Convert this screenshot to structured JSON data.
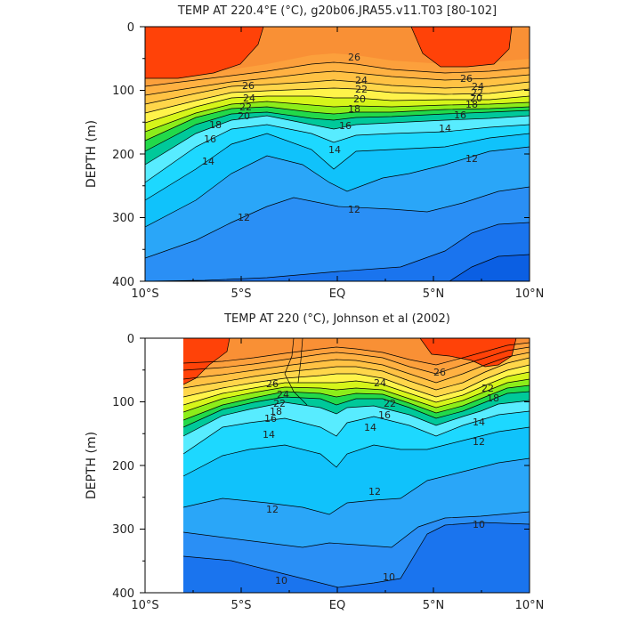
{
  "chart_data": [
    {
      "type": "contour",
      "title": "TEMP AT 220.4°E (°C), g20b06.JRA55.v11.T03 [80-102]",
      "ylabel": "DEPTH (m)",
      "xlabel": "",
      "x_range": [
        -10,
        10
      ],
      "y_range": [
        0,
        400
      ],
      "y_inverted": true,
      "x_tick_labels": [
        "10°S",
        "5°S",
        "EQ",
        "5°N",
        "10°N"
      ],
      "y_tick_labels": [
        "0",
        "100",
        "200",
        "300",
        "400"
      ],
      "data_x_range": [
        -10,
        10
      ],
      "contour_levels": [
        8,
        9,
        10,
        11,
        12,
        13,
        14,
        15,
        16,
        17,
        18,
        19,
        20,
        21,
        22,
        23,
        24,
        25,
        26,
        27
      ],
      "contour_labels": [
        "26",
        "24",
        "22",
        "20",
        "18",
        "16",
        "14",
        "12",
        "12",
        "14",
        "16",
        "18",
        "20",
        "22",
        "24",
        "26",
        "26",
        "24",
        "22",
        "20",
        "18",
        "16",
        "14",
        "12"
      ],
      "isotherm_depth_m": {
        "27": [
          [
            -10,
            80
          ],
          [
            -6,
            80
          ],
          [
            -4,
            0
          ],
          [
            4,
            0
          ],
          [
            4.5,
            55
          ],
          [
            8.5,
            60
          ],
          [
            9,
            0
          ]
        ],
        "26": [
          [
            -10,
            90
          ],
          [
            -5,
            92
          ],
          [
            -2,
            76
          ],
          [
            0,
            70
          ],
          [
            3,
            72
          ],
          [
            6,
            78
          ],
          [
            10,
            72
          ]
        ],
        "24": [
          [
            -10,
            118
          ],
          [
            -5,
            112
          ],
          [
            -2,
            94
          ],
          [
            0,
            90
          ],
          [
            3,
            95
          ],
          [
            6,
            98
          ],
          [
            10,
            92
          ]
        ],
        "20": [
          [
            -10,
            148
          ],
          [
            -5,
            130
          ],
          [
            -2,
            115
          ],
          [
            0,
            110
          ],
          [
            3,
            118
          ],
          [
            6,
            117
          ],
          [
            10,
            108
          ]
        ],
        "16": [
          [
            -10,
            190
          ],
          [
            -7,
            165
          ],
          [
            -4,
            135
          ],
          [
            0,
            138
          ],
          [
            3,
            140
          ],
          [
            6,
            130
          ],
          [
            10,
            122
          ]
        ],
        "14": [
          [
            -10,
            215
          ],
          [
            -7,
            192
          ],
          [
            -4,
            152
          ],
          [
            0,
            165
          ],
          [
            3,
            162
          ],
          [
            6,
            145
          ],
          [
            10,
            138
          ]
        ],
        "12": [
          [
            -10,
            305
          ],
          [
            -7,
            255
          ],
          [
            -4,
            200
          ],
          [
            0,
            228
          ],
          [
            3,
            220
          ],
          [
            6,
            175
          ],
          [
            10,
            165
          ]
        ],
        "10": [
          [
            -10,
            355
          ],
          [
            -7,
            330
          ],
          [
            -4,
            285
          ],
          [
            0,
            285
          ],
          [
            3,
            285
          ],
          [
            6,
            255
          ],
          [
            10,
            205
          ]
        ],
        "8": [
          [
            -10,
            400
          ],
          [
            6,
            400
          ],
          [
            7,
            345
          ],
          [
            10,
            340
          ]
        ]
      }
    },
    {
      "type": "contour",
      "title": "TEMP AT 220 (°C), Johnson et al (2002)",
      "ylabel": "DEPTH (m)",
      "xlabel": "",
      "x_range": [
        -10,
        10
      ],
      "y_range": [
        0,
        400
      ],
      "y_inverted": true,
      "x_tick_labels": [
        "10°S",
        "5°S",
        "EQ",
        "5°N",
        "10°N"
      ],
      "y_tick_labels": [
        "0",
        "100",
        "200",
        "300",
        "400"
      ],
      "data_x_range": [
        -8,
        10
      ],
      "contour_levels": [
        8,
        9,
        10,
        11,
        12,
        13,
        14,
        15,
        16,
        17,
        18,
        19,
        20,
        21,
        22,
        23,
        24,
        25,
        26,
        27
      ],
      "contour_labels": [
        "26",
        "24",
        "22",
        "18",
        "16",
        "14",
        "12",
        "24",
        "22",
        "16",
        "14",
        "12",
        "26",
        "22",
        "18",
        "14",
        "12",
        "10",
        "10",
        "10"
      ],
      "isotherm_depth_m": {
        "27": [
          [
            -8,
            75
          ],
          [
            -7,
            65
          ],
          [
            -6,
            0
          ],
          [
            4.5,
            0
          ],
          [
            5,
            35
          ],
          [
            8,
            40
          ],
          [
            9,
            0
          ]
        ],
        "26": [
          [
            -8,
            85
          ],
          [
            -5,
            70
          ],
          [
            -2,
            60
          ],
          [
            0,
            55
          ],
          [
            3,
            58
          ],
          [
            6,
            72
          ],
          [
            10,
            50
          ]
        ],
        "24": [
          [
            -8,
            110
          ],
          [
            -5,
            92
          ],
          [
            -2,
            80
          ],
          [
            0,
            78
          ],
          [
            3,
            82
          ],
          [
            5,
            110
          ],
          [
            10,
            65
          ]
        ],
        "20": [
          [
            -8,
            140
          ],
          [
            -5,
            115
          ],
          [
            -2,
            102
          ],
          [
            0,
            108
          ],
          [
            3,
            110
          ],
          [
            5,
            140
          ],
          [
            10,
            78
          ]
        ],
        "16": [
          [
            -8,
            180
          ],
          [
            -5,
            135
          ],
          [
            -2,
            125
          ],
          [
            0,
            145
          ],
          [
            3,
            128
          ],
          [
            5,
            155
          ],
          [
            10,
            95
          ]
        ],
        "14": [
          [
            -8,
            210
          ],
          [
            -5,
            160
          ],
          [
            -2,
            150
          ],
          [
            0,
            180
          ],
          [
            3,
            152
          ],
          [
            5,
            170
          ],
          [
            10,
            115
          ]
        ],
        "12": [
          [
            -8,
            285
          ],
          [
            -5,
            250
          ],
          [
            -2,
            245
          ],
          [
            0,
            260
          ],
          [
            3,
            240
          ],
          [
            5,
            215
          ],
          [
            10,
            185
          ]
        ],
        "10": [
          [
            -8,
            345
          ],
          [
            -5,
            352
          ],
          [
            -2,
            360
          ],
          [
            0,
            372
          ],
          [
            3,
            360
          ],
          [
            5,
            290
          ],
          [
            10,
            285
          ]
        ]
      }
    }
  ]
}
